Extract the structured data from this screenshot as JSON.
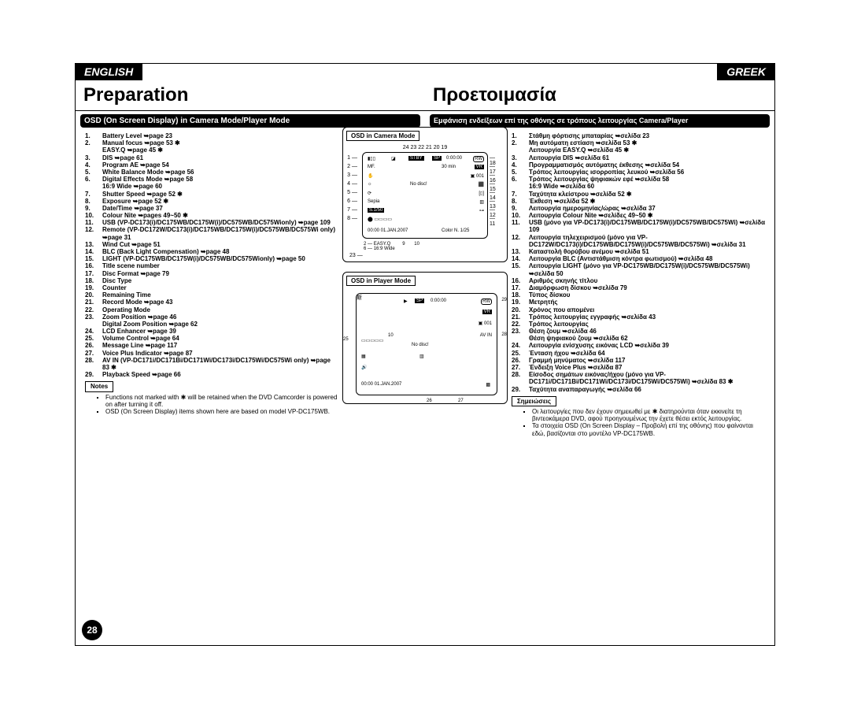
{
  "lang_en": "ENGLISH",
  "lang_gr": "GREEK",
  "title_en": "Preparation",
  "title_gr": "Προετοιμασία",
  "sub_en": "OSD (On Screen Display) in Camera Mode/Player Mode",
  "sub_gr": "Εμφάνιση ενδείξεων επί της οθόνης σε τρόπους λειτουργίας Camera/Player",
  "page_num": "28",
  "en_items": [
    "Battery Level ➥page 23",
    "Manual focus ➥page 53 ✱\nEASY.Q ➥page 45 ✱",
    "DIS ➥page 61",
    "Program AE ➥page 54",
    "White Balance Mode ➥page 56",
    "Digital Effects Mode ➥page 58\n16:9 Wide ➥page 60",
    "Shutter Speed ➥page 52 ✱",
    "Exposure ➥page 52 ✱",
    "Date/Time ➥page 37",
    "Colour Nite ➥pages 49~50 ✱",
    "USB (VP-DC173(i)/DC175WB/DC175W(i)/DC575WB/DC575Wionly) ➥page 109",
    "Remote (VP-DC172W/DC173(i)/DC175WB/DC175W(i)/DC575WB/DC575Wi only) ➥page 31",
    "Wind Cut ➥page 51",
    "BLC (Back Light Compensation) ➥page 48",
    "LIGHT (VP-DC175WB/DC175W(i)/DC575WB/DC575Wionly) ➥page 50",
    "Title scene number",
    "Disc Format ➥page 79",
    "Disc Type",
    "Counter",
    "Remaining Time",
    "Record Mode ➥page 43",
    "Operating Mode",
    "Zoom Position ➥page 46\nDigital Zoom Position ➥page 62",
    "LCD Enhancer ➥page 39",
    "Volume Control ➥page 64",
    "Message Line ➥page 117",
    "Voice Plus Indicator ➥page 87",
    "AV IN (VP-DC171i/DC171Bi/DC171Wi/DC173i/DC175Wi/DC575Wi only) ➥page 83 ✱",
    "Playback Speed ➥page 66"
  ],
  "notes_en_hd": "Notes",
  "notes_en": [
    "Functions not marked with ✱ will be retained when the DVD Camcorder is powered on after turning it off.",
    "OSD (On Screen Display) items shown here are based on model VP-DC175WB."
  ],
  "gr_items": [
    "Στάθμη φόρτισης μπαταρίας ➥σελίδα 23",
    "Μη αυτόματη εστίαση ➥σελίδα 53 ✱\nΛειτουργία EASY.Q ➥σελίδα 45 ✱",
    "Λειτουργία DIS ➥σελίδα 61",
    "Προγραμματισμός αυτόματης έκθεσης ➥σελίδα 54",
    "Τρόπος λειτουργίας ισορροπίας λευκού ➥σελίδα 56",
    "Τρόπος λειτουργίας ψηφιακών εφέ ➥σελίδα 58\n16:9 Wide ➥σελίδα 60",
    "Ταχύτητα κλείστρου ➥σελίδα 52 ✱",
    "Έκθεση ➥σελίδα 52 ✱",
    "Λειτουργία ημερομηνίας/ώρας ➥σελίδα 37",
    "Λειτουργία Colour Nite ➥σελίδες 49~50 ✱",
    "USB (μόνο για VP-DC173(i)/DC175WB/DC175W(i)/DC575WB/DC575Wi) ➥σελίδα 109",
    "Λειτουργία τηλεχειρισμού (μόνο για VP-DC172W/DC173(i)/DC175WB/DC175W(i)/DC575WB/DC575Wi) ➥σελίδα 31",
    "Καταστολή θορύβου ανέμου ➥σελίδα 51",
    "Λειτουργία BLC (Αντιστάθμιση κόντρα φωτισμού) ➥σελίδα 48",
    "Λειτουργία LIGHT (μόνο για VP-DC175WB/DC175W(i)/DC575WB/DC575Wi) ➥σελίδα 50",
    "Αριθμός σκηνής τίτλου",
    "Διαμόρφωση δίσκου ➥σελίδα 79",
    "Τύπος δίσκου",
    "Μετρητής",
    "Χρόνος που απομένει",
    "Τρόπος λειτουργίας εγγραφής ➥σελίδα 43",
    "Τρόπος λειτουργίας",
    "Θέση ζουμ ➥σελίδα 46\nΘέση ψηφιακού ζουμ ➥σελίδα 62",
    "Λειτουργία ενίσχυσης εικόνας LCD ➥σελίδα 39",
    "Ένταση ήχου ➥σελίδα 64",
    "Γραμμή μηνύματος ➥σελίδα 117",
    "Ένδειξη Voice Plus ➥σελίδα 87",
    "Είσοδος σημάτων εικόνας/ήχου (μόνο για VP-DC171i/DC171Bi/DC171Wi/DC173i/DC175Wi/DC575Wi) ➥σελίδα 83 ✱",
    "Ταχύτητα αναπαραγωγής ➥σελίδα 66"
  ],
  "notes_gr_hd": "Σημειώσεις",
  "notes_gr": [
    "Οι λειτουργίες που δεν έχουν σημειωθεί με ✱ διατηρούνται όταν εκκινείτε τη βιντεοκάμερα DVD, αφού προηγουμένως την έχετε θέσει εκτός λειτουργίας.",
    "Τα στοιχεία OSD (On Screen Display – Προβολή επί της οθόνης) που φαίνονται εδώ, βασίζονται στο μοντέλο VP-DC175WB."
  ],
  "diag1_hd": "OSD in Camera Mode",
  "diag2_hd": "OSD in Player Mode",
  "screen1": {
    "top_nums": "24  23 22     21  20  19",
    "stby": "STBY",
    "sp": "SP",
    "time": "0:00:00",
    "rw": "RW",
    "min30": "30 min",
    "vr": "VR",
    "d001": "▣ 001",
    "nodisc": "No disc!",
    "sepia": "Sepia",
    "s150": "S.1/50",
    "colorn": "Color N. 1/25",
    "date": "00:00 01.JAN.2007",
    "easyq": "EASY.Q",
    "wide": "16:9 Wide",
    "b2": "2",
    "b6": "6",
    "b9": "9",
    "b10": "10",
    "b23": "23",
    "left": [
      "1",
      "2",
      "3",
      "4",
      "5",
      "6",
      "7",
      "8"
    ],
    "right": [
      "18",
      "17",
      "16",
      "15",
      "14",
      "13",
      "12",
      "11"
    ]
  },
  "screen2": {
    "sp": "SP",
    "time": "0:00:00",
    "rw": "RW",
    "vr": "VR",
    "d001": "▣ 001",
    "avin": "AV IN",
    "nodisc": "No disc!",
    "ten": "10",
    "date": "00:00 01.JAN.2007",
    "n25": "25",
    "n26": "26",
    "n27": "27",
    "n28": "28",
    "n29": "29"
  }
}
